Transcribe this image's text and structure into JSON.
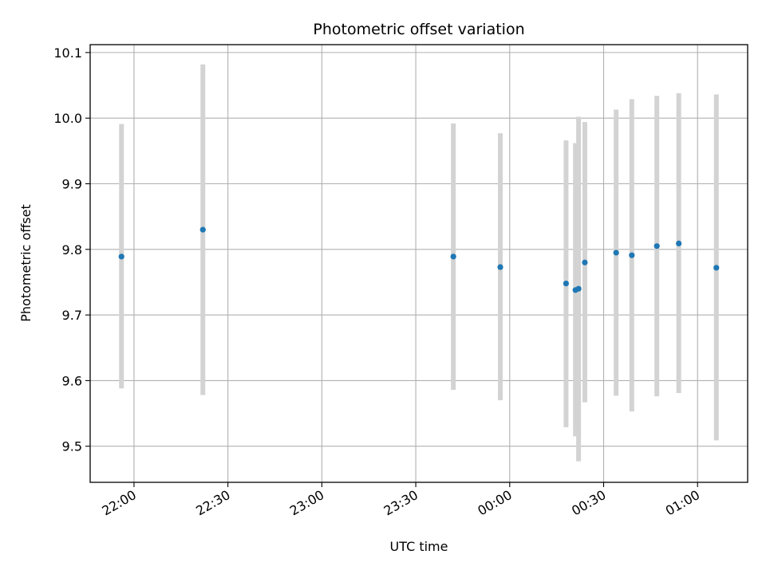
{
  "chart_data": {
    "type": "scatter",
    "title": "Photometric offset variation",
    "xlabel": "UTC time",
    "ylabel": "Photometric offset",
    "x_ticks": [
      "22:00",
      "22:30",
      "23:00",
      "23:30",
      "00:00",
      "00:30",
      "01:00"
    ],
    "y_ticks": [
      "9.5",
      "9.6",
      "9.7",
      "9.8",
      "9.9",
      "10.0",
      "10.1"
    ],
    "x_range": [
      "21:46",
      "01:16"
    ],
    "ylim": [
      9.445,
      10.112
    ],
    "grid": true,
    "error_bar_color": "#d3d3d3",
    "point_color": "#1f77b4",
    "points": [
      {
        "x": "21:56",
        "y": 9.789,
        "ylo": 9.588,
        "yhi": 9.991
      },
      {
        "x": "22:22",
        "y": 9.83,
        "ylo": 9.578,
        "yhi": 10.082
      },
      {
        "x": "23:42",
        "y": 9.789,
        "ylo": 9.586,
        "yhi": 9.992
      },
      {
        "x": "23:57",
        "y": 9.773,
        "ylo": 9.57,
        "yhi": 9.977
      },
      {
        "x": "00:18",
        "y": 9.748,
        "ylo": 9.529,
        "yhi": 9.966
      },
      {
        "x": "00:21",
        "y": 9.738,
        "ylo": 9.515,
        "yhi": 9.962
      },
      {
        "x": "00:22",
        "y": 9.74,
        "ylo": 9.477,
        "yhi": 10.002
      },
      {
        "x": "00:24",
        "y": 9.78,
        "ylo": 9.567,
        "yhi": 9.994
      },
      {
        "x": "00:34",
        "y": 9.795,
        "ylo": 9.577,
        "yhi": 10.013
      },
      {
        "x": "00:39",
        "y": 9.791,
        "ylo": 9.553,
        "yhi": 10.029
      },
      {
        "x": "00:47",
        "y": 9.805,
        "ylo": 9.576,
        "yhi": 10.034
      },
      {
        "x": "00:54",
        "y": 9.809,
        "ylo": 9.581,
        "yhi": 10.038
      },
      {
        "x": "01:06",
        "y": 9.772,
        "ylo": 9.509,
        "yhi": 10.036
      }
    ]
  }
}
